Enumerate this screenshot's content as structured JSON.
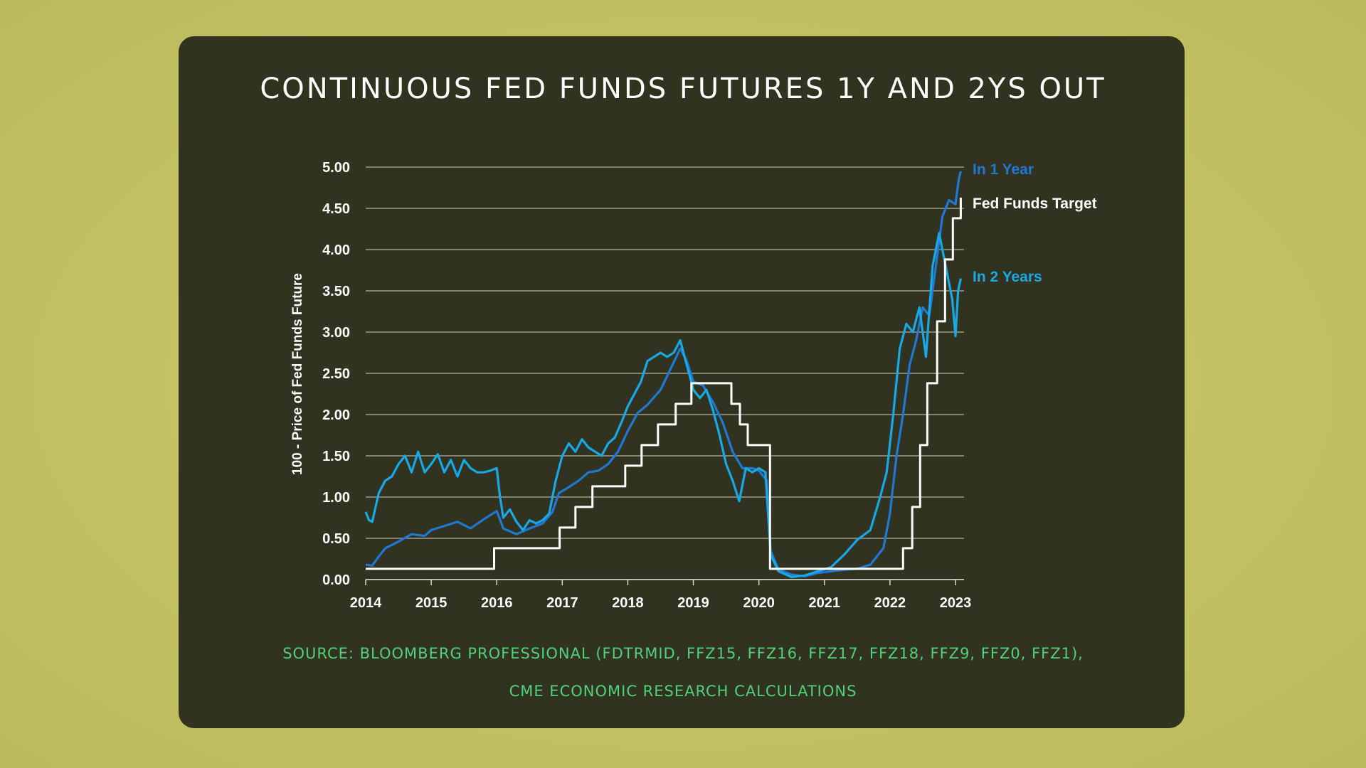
{
  "chart_data": {
    "type": "line",
    "title": "CONTINUOUS FED FUNDS FUTURES 1Y AND 2YS OUT",
    "ylabel": "100 - Price of Fed Funds Future",
    "xlabel": "",
    "ylim": [
      0,
      5
    ],
    "yticks": [
      "0.00",
      "0.50",
      "1.00",
      "1.50",
      "2.00",
      "2.50",
      "3.00",
      "3.50",
      "4.00",
      "4.50",
      "5.00"
    ],
    "xticks": [
      "2014",
      "2015",
      "2016",
      "2017",
      "2018",
      "2019",
      "2020",
      "2021",
      "2022",
      "2023"
    ],
    "xlim": [
      2014,
      2023.05
    ],
    "grid": true,
    "legend_position": "right",
    "series": [
      {
        "name": "Fed Funds Target",
        "color": "#ffffff",
        "step": true,
        "points": [
          [
            2014,
            0.13
          ],
          [
            2015.96,
            0.13
          ],
          [
            2015.96,
            0.38
          ],
          [
            2016.96,
            0.38
          ],
          [
            2016.96,
            0.63
          ],
          [
            2017.2,
            0.63
          ],
          [
            2017.2,
            0.88
          ],
          [
            2017.46,
            0.88
          ],
          [
            2017.46,
            1.13
          ],
          [
            2017.96,
            1.13
          ],
          [
            2017.96,
            1.38
          ],
          [
            2018.21,
            1.38
          ],
          [
            2018.21,
            1.63
          ],
          [
            2018.46,
            1.63
          ],
          [
            2018.46,
            1.88
          ],
          [
            2018.73,
            1.88
          ],
          [
            2018.73,
            2.13
          ],
          [
            2018.97,
            2.13
          ],
          [
            2018.97,
            2.38
          ],
          [
            2019.58,
            2.38
          ],
          [
            2019.58,
            2.13
          ],
          [
            2019.71,
            2.13
          ],
          [
            2019.71,
            1.88
          ],
          [
            2019.83,
            1.88
          ],
          [
            2019.83,
            1.63
          ],
          [
            2020.17,
            1.63
          ],
          [
            2020.17,
            0.13
          ],
          [
            2022.2,
            0.13
          ],
          [
            2022.2,
            0.38
          ],
          [
            2022.34,
            0.38
          ],
          [
            2022.34,
            0.88
          ],
          [
            2022.46,
            0.88
          ],
          [
            2022.46,
            1.63
          ],
          [
            2022.57,
            1.63
          ],
          [
            2022.57,
            2.38
          ],
          [
            2022.72,
            2.38
          ],
          [
            2022.72,
            3.13
          ],
          [
            2022.84,
            3.13
          ],
          [
            2022.84,
            3.88
          ],
          [
            2022.96,
            3.88
          ],
          [
            2022.96,
            4.38
          ],
          [
            2023.08,
            4.38
          ],
          [
            2023.08,
            4.63
          ]
        ]
      },
      {
        "name": "In 1 Year",
        "color": "#1f78d1",
        "points": [
          [
            2014,
            0.18
          ],
          [
            2014.1,
            0.17
          ],
          [
            2014.2,
            0.28
          ],
          [
            2014.3,
            0.38
          ],
          [
            2014.5,
            0.46
          ],
          [
            2014.7,
            0.55
          ],
          [
            2014.9,
            0.53
          ],
          [
            2015,
            0.6
          ],
          [
            2015.2,
            0.65
          ],
          [
            2015.4,
            0.7
          ],
          [
            2015.6,
            0.62
          ],
          [
            2015.8,
            0.73
          ],
          [
            2016,
            0.83
          ],
          [
            2016.1,
            0.62
          ],
          [
            2016.3,
            0.55
          ],
          [
            2016.5,
            0.62
          ],
          [
            2016.7,
            0.68
          ],
          [
            2016.85,
            0.82
          ],
          [
            2016.95,
            1.05
          ],
          [
            2017.1,
            1.12
          ],
          [
            2017.25,
            1.2
          ],
          [
            2017.4,
            1.3
          ],
          [
            2017.55,
            1.32
          ],
          [
            2017.7,
            1.4
          ],
          [
            2017.85,
            1.55
          ],
          [
            2018,
            1.8
          ],
          [
            2018.15,
            2.02
          ],
          [
            2018.3,
            2.12
          ],
          [
            2018.5,
            2.3
          ],
          [
            2018.65,
            2.55
          ],
          [
            2018.8,
            2.8
          ],
          [
            2018.9,
            2.65
          ],
          [
            2019,
            2.4
          ],
          [
            2019.15,
            2.35
          ],
          [
            2019.3,
            2.15
          ],
          [
            2019.45,
            1.9
          ],
          [
            2019.6,
            1.55
          ],
          [
            2019.75,
            1.35
          ],
          [
            2019.9,
            1.35
          ],
          [
            2020,
            1.32
          ],
          [
            2020.12,
            1.2
          ],
          [
            2020.18,
            0.35
          ],
          [
            2020.3,
            0.12
          ],
          [
            2020.5,
            0.06
          ],
          [
            2020.7,
            0.04
          ],
          [
            2020.9,
            0.08
          ],
          [
            2021.1,
            0.1
          ],
          [
            2021.3,
            0.12
          ],
          [
            2021.5,
            0.13
          ],
          [
            2021.7,
            0.18
          ],
          [
            2021.9,
            0.38
          ],
          [
            2022,
            0.8
          ],
          [
            2022.1,
            1.5
          ],
          [
            2022.2,
            2.0
          ],
          [
            2022.3,
            2.6
          ],
          [
            2022.4,
            2.9
          ],
          [
            2022.5,
            3.3
          ],
          [
            2022.6,
            3.2
          ],
          [
            2022.7,
            3.8
          ],
          [
            2022.8,
            4.4
          ],
          [
            2022.9,
            4.6
          ],
          [
            2023,
            4.55
          ],
          [
            2023.05,
            4.85
          ],
          [
            2023.08,
            4.95
          ]
        ]
      },
      {
        "name": "In 2 Years",
        "color": "#17a9e6",
        "points": [
          [
            2014,
            0.82
          ],
          [
            2014.05,
            0.72
          ],
          [
            2014.1,
            0.7
          ],
          [
            2014.2,
            1.05
          ],
          [
            2014.3,
            1.2
          ],
          [
            2014.4,
            1.25
          ],
          [
            2014.5,
            1.4
          ],
          [
            2014.6,
            1.5
          ],
          [
            2014.7,
            1.3
          ],
          [
            2014.8,
            1.55
          ],
          [
            2014.9,
            1.3
          ],
          [
            2015,
            1.4
          ],
          [
            2015.1,
            1.52
          ],
          [
            2015.2,
            1.3
          ],
          [
            2015.3,
            1.45
          ],
          [
            2015.4,
            1.25
          ],
          [
            2015.5,
            1.45
          ],
          [
            2015.6,
            1.35
          ],
          [
            2015.7,
            1.3
          ],
          [
            2015.8,
            1.3
          ],
          [
            2015.9,
            1.32
          ],
          [
            2016,
            1.35
          ],
          [
            2016.05,
            1.0
          ],
          [
            2016.1,
            0.75
          ],
          [
            2016.2,
            0.85
          ],
          [
            2016.3,
            0.7
          ],
          [
            2016.4,
            0.6
          ],
          [
            2016.5,
            0.72
          ],
          [
            2016.6,
            0.68
          ],
          [
            2016.7,
            0.72
          ],
          [
            2016.8,
            0.8
          ],
          [
            2016.9,
            1.2
          ],
          [
            2017,
            1.5
          ],
          [
            2017.1,
            1.65
          ],
          [
            2017.2,
            1.55
          ],
          [
            2017.3,
            1.7
          ],
          [
            2017.4,
            1.6
          ],
          [
            2017.5,
            1.55
          ],
          [
            2017.6,
            1.5
          ],
          [
            2017.7,
            1.65
          ],
          [
            2017.8,
            1.72
          ],
          [
            2017.9,
            1.9
          ],
          [
            2018,
            2.1
          ],
          [
            2018.1,
            2.25
          ],
          [
            2018.2,
            2.4
          ],
          [
            2018.3,
            2.65
          ],
          [
            2018.4,
            2.7
          ],
          [
            2018.5,
            2.75
          ],
          [
            2018.6,
            2.7
          ],
          [
            2018.7,
            2.75
          ],
          [
            2018.8,
            2.9
          ],
          [
            2018.9,
            2.6
          ],
          [
            2019,
            2.3
          ],
          [
            2019.1,
            2.2
          ],
          [
            2019.2,
            2.3
          ],
          [
            2019.3,
            2.05
          ],
          [
            2019.4,
            1.75
          ],
          [
            2019.5,
            1.4
          ],
          [
            2019.6,
            1.2
          ],
          [
            2019.7,
            0.95
          ],
          [
            2019.8,
            1.35
          ],
          [
            2019.9,
            1.3
          ],
          [
            2020,
            1.35
          ],
          [
            2020.1,
            1.3
          ],
          [
            2020.18,
            0.3
          ],
          [
            2020.3,
            0.1
          ],
          [
            2020.5,
            0.03
          ],
          [
            2020.7,
            0.05
          ],
          [
            2020.9,
            0.1
          ],
          [
            2021.1,
            0.15
          ],
          [
            2021.3,
            0.3
          ],
          [
            2021.5,
            0.48
          ],
          [
            2021.7,
            0.6
          ],
          [
            2021.85,
            1.0
          ],
          [
            2021.95,
            1.3
          ],
          [
            2022.05,
            2.0
          ],
          [
            2022.15,
            2.8
          ],
          [
            2022.25,
            3.1
          ],
          [
            2022.35,
            3.0
          ],
          [
            2022.45,
            3.3
          ],
          [
            2022.55,
            2.7
          ],
          [
            2022.65,
            3.8
          ],
          [
            2022.75,
            4.2
          ],
          [
            2022.85,
            3.8
          ],
          [
            2022.95,
            3.4
          ],
          [
            2023,
            2.95
          ],
          [
            2023.04,
            3.5
          ],
          [
            2023.08,
            3.65
          ]
        ]
      }
    ]
  },
  "source": {
    "line1": "SOURCE: BLOOMBERG PROFESSIONAL (FDTRMID, FFZ15, FFZ16, FFZ17, FFZ18, FFZ9, FFZ0, FFZ1),",
    "line2": "CME ECONOMIC RESEARCH CALCULATIONS"
  }
}
